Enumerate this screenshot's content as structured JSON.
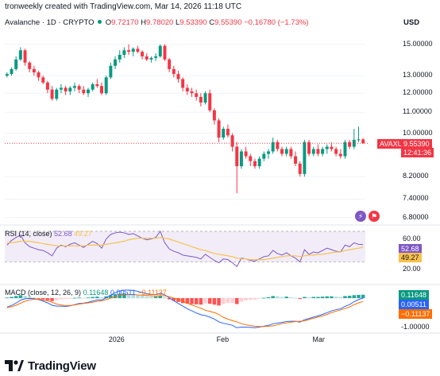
{
  "credit": "tronweekly created with TradingView.com, Mar 14, 2026 11:18 UTC",
  "legend": {
    "symbol": "Avalanche · 1D · CRYPTO",
    "o_key": "O",
    "o": "9.72170",
    "h_key": "H",
    "h": "9.78020",
    "l_key": "L",
    "l": "9.53390",
    "c_key": "C",
    "c": "9.55390",
    "change": "−0.16780 (−1.73%)"
  },
  "currency": "USD",
  "price_tag": {
    "symbol": "AVAXUSD",
    "price": "9.55390",
    "countdown": "12:41:36"
  },
  "rsi_legend": {
    "label": "RSI (14, close)",
    "rsi": "52.68",
    "ma": "49.27"
  },
  "rsi_tags": {
    "rsi": "52.68",
    "ma": "49.27"
  },
  "macd_legend": {
    "label": "MACD (close, 12, 26, 9)",
    "hist": "0.11648",
    "macd": "0.00511",
    "signal": "−0.11137"
  },
  "macd_tags": {
    "hist": "0.11648",
    "macd": "0.00511",
    "signal": "−0.11137"
  },
  "brand": "TradingView",
  "colors": {
    "up": "#089981",
    "down": "#f23645",
    "rsi": "#7e57c2",
    "rsi_ma": "#f7c14d",
    "macd": "#2962ff",
    "signal": "#ff6d00"
  },
  "chart_data": [
    {
      "type": "candlestick",
      "title": "Avalanche · 1D · CRYPTO",
      "ylabel": "USD",
      "y_ticks": [
        "15.00000",
        "13.00000",
        "12.00000",
        "11.00000",
        "10.00000",
        "8.20000",
        "7.40000",
        "6.80000"
      ],
      "x_ticks": [
        "2026",
        "Feb",
        "Mar"
      ],
      "log_scale": true,
      "ylim": [
        6.6,
        16.0
      ],
      "x_range": [
        "2025-11-30",
        "2026-03-14"
      ],
      "candles": [
        [
          13.0,
          13.2,
          12.9,
          13.1
        ],
        [
          13.1,
          13.5,
          13.0,
          13.4
        ],
        [
          13.4,
          14.2,
          13.3,
          14.0
        ],
        [
          14.0,
          14.8,
          13.9,
          14.6
        ],
        [
          14.6,
          14.7,
          13.6,
          13.8
        ],
        [
          13.8,
          13.9,
          13.2,
          13.4
        ],
        [
          13.4,
          13.6,
          13.0,
          13.2
        ],
        [
          13.2,
          13.3,
          12.7,
          12.9
        ],
        [
          12.9,
          13.0,
          12.5,
          12.6
        ],
        [
          12.6,
          12.7,
          12.0,
          12.2
        ],
        [
          12.2,
          12.4,
          11.6,
          11.7
        ],
        [
          11.7,
          12.3,
          11.6,
          12.2
        ],
        [
          12.2,
          12.5,
          12.0,
          12.3
        ],
        [
          12.3,
          12.4,
          11.9,
          12.1
        ],
        [
          12.1,
          12.4,
          11.9,
          12.3
        ],
        [
          12.3,
          12.6,
          12.1,
          12.4
        ],
        [
          12.4,
          12.5,
          12.0,
          12.2
        ],
        [
          12.2,
          12.4,
          11.9,
          12.0
        ],
        [
          12.0,
          12.3,
          11.8,
          12.2
        ],
        [
          12.2,
          12.6,
          12.1,
          12.5
        ],
        [
          12.5,
          12.8,
          12.3,
          12.4
        ],
        [
          12.4,
          12.6,
          11.9,
          12.0
        ],
        [
          12.0,
          13.0,
          11.9,
          12.9
        ],
        [
          12.9,
          13.8,
          12.8,
          13.6
        ],
        [
          13.6,
          14.2,
          13.4,
          14.0
        ],
        [
          14.0,
          14.6,
          13.8,
          14.3
        ],
        [
          14.3,
          14.8,
          14.1,
          14.6
        ],
        [
          14.6,
          15.0,
          14.3,
          14.5
        ],
        [
          14.5,
          14.8,
          14.2,
          14.7
        ],
        [
          14.7,
          14.9,
          14.4,
          14.5
        ],
        [
          14.5,
          14.6,
          14.0,
          14.2
        ],
        [
          14.2,
          14.4,
          13.9,
          14.0
        ],
        [
          14.0,
          14.2,
          13.8,
          14.1
        ],
        [
          14.1,
          14.4,
          13.9,
          14.2
        ],
        [
          14.2,
          15.0,
          14.1,
          14.9
        ],
        [
          14.9,
          15.0,
          13.9,
          14.0
        ],
        [
          14.0,
          14.1,
          13.2,
          13.4
        ],
        [
          13.4,
          13.6,
          12.9,
          13.1
        ],
        [
          13.1,
          13.3,
          12.6,
          12.8
        ],
        [
          12.8,
          12.9,
          12.1,
          12.3
        ],
        [
          12.3,
          12.5,
          11.9,
          12.1
        ],
        [
          12.1,
          12.3,
          11.8,
          12.0
        ],
        [
          12.0,
          12.2,
          11.6,
          11.8
        ],
        [
          11.8,
          12.0,
          11.3,
          11.5
        ],
        [
          11.5,
          12.1,
          11.4,
          12.0
        ],
        [
          12.0,
          12.2,
          11.0,
          11.1
        ],
        [
          11.1,
          11.2,
          10.4,
          10.6
        ],
        [
          10.6,
          10.7,
          9.6,
          9.8
        ],
        [
          9.8,
          10.3,
          9.7,
          10.2
        ],
        [
          10.2,
          10.4,
          9.8,
          9.9
        ],
        [
          9.9,
          10.0,
          9.2,
          9.4
        ],
        [
          9.4,
          9.6,
          7.6,
          8.6
        ],
        [
          8.6,
          9.3,
          8.5,
          9.2
        ],
        [
          9.2,
          9.4,
          8.9,
          9.0
        ],
        [
          9.0,
          9.1,
          8.6,
          8.8
        ],
        [
          8.8,
          8.9,
          8.5,
          8.6
        ],
        [
          8.6,
          9.0,
          8.5,
          8.9
        ],
        [
          8.9,
          9.2,
          8.8,
          9.1
        ],
        [
          9.1,
          9.3,
          8.9,
          9.2
        ],
        [
          9.2,
          9.8,
          9.1,
          9.6
        ],
        [
          9.6,
          9.7,
          9.2,
          9.3
        ],
        [
          9.3,
          9.4,
          9.0,
          9.1
        ],
        [
          9.1,
          9.4,
          9.0,
          9.3
        ],
        [
          9.3,
          9.4,
          8.9,
          9.0
        ],
        [
          9.0,
          9.2,
          8.6,
          8.7
        ],
        [
          8.7,
          8.8,
          8.2,
          8.3
        ],
        [
          8.3,
          9.7,
          8.2,
          9.6
        ],
        [
          9.6,
          9.7,
          9.0,
          9.1
        ],
        [
          9.1,
          9.4,
          9.0,
          9.3
        ],
        [
          9.3,
          9.5,
          9.0,
          9.1
        ],
        [
          9.1,
          9.4,
          9.0,
          9.3
        ],
        [
          9.3,
          9.5,
          9.1,
          9.4
        ],
        [
          9.4,
          9.6,
          9.2,
          9.3
        ],
        [
          9.3,
          9.4,
          9.0,
          9.1
        ],
        [
          9.1,
          9.3,
          8.9,
          9.0
        ],
        [
          9.0,
          9.7,
          8.9,
          9.6
        ],
        [
          9.6,
          9.7,
          9.3,
          9.4
        ],
        [
          9.4,
          10.2,
          9.3,
          9.7
        ],
        [
          9.7,
          10.3,
          9.6,
          9.72
        ],
        [
          9.72,
          9.78,
          9.53,
          9.55
        ]
      ]
    },
    {
      "type": "line",
      "title": "RSI (14, close)",
      "y_ticks": [
        "60.00",
        "20.00"
      ],
      "ylim": [
        15,
        70
      ],
      "bands": [
        30,
        70
      ],
      "series": [
        {
          "name": "RSI",
          "values": [
            52,
            58,
            62,
            65,
            55,
            50,
            48,
            46,
            45,
            42,
            38,
            48,
            52,
            50,
            53,
            55,
            52,
            49,
            53,
            57,
            54,
            48,
            60,
            66,
            68,
            69,
            68,
            66,
            67,
            64,
            61,
            59,
            60,
            62,
            70,
            55,
            47,
            44,
            42,
            39,
            38,
            37,
            36,
            34,
            40,
            36,
            32,
            29,
            34,
            33,
            29,
            24,
            35,
            34,
            32,
            31,
            34,
            37,
            38,
            45,
            41,
            39,
            42,
            38,
            35,
            30,
            46,
            40,
            43,
            42,
            45,
            48,
            46,
            44,
            43,
            52,
            50,
            55,
            53,
            52.68
          ]
        },
        {
          "name": "MA",
          "values": [
            55,
            55,
            56,
            57,
            57,
            57,
            56,
            55,
            54,
            53,
            52,
            51,
            51,
            51,
            51,
            51,
            51,
            51,
            52,
            52,
            52,
            52,
            53,
            54,
            55,
            56,
            57,
            59,
            60,
            61,
            61,
            61,
            61,
            61,
            62,
            61,
            60,
            58,
            56,
            54,
            52,
            50,
            48,
            46,
            45,
            43,
            41,
            40,
            39,
            38,
            37,
            35,
            34,
            34,
            33,
            33,
            33,
            33,
            34,
            35,
            36,
            37,
            38,
            38,
            38,
            37,
            38,
            39,
            39,
            40,
            40,
            41,
            42,
            43,
            43,
            45,
            46,
            47,
            48,
            49.27
          ]
        }
      ]
    },
    {
      "type": "bar",
      "title": "MACD (close, 12, 26, 9)",
      "y_ticks": [
        "-1.00000"
      ],
      "ylim": [
        -1.1,
        0.35
      ],
      "zero_line": true,
      "histogram": [
        0.02,
        0.04,
        0.07,
        0.1,
        0.08,
        0.05,
        0.02,
        -0.01,
        -0.04,
        -0.07,
        -0.1,
        -0.07,
        -0.04,
        -0.03,
        -0.01,
        0.01,
        0.02,
        0.01,
        0.02,
        0.04,
        0.05,
        0.03,
        0.06,
        0.1,
        0.13,
        0.15,
        0.16,
        0.15,
        0.14,
        0.12,
        0.09,
        0.06,
        0.05,
        0.05,
        0.08,
        0.03,
        -0.04,
        -0.09,
        -0.13,
        -0.17,
        -0.19,
        -0.2,
        -0.21,
        -0.22,
        -0.18,
        -0.19,
        -0.22,
        -0.25,
        -0.2,
        -0.17,
        -0.16,
        -0.2,
        -0.12,
        -0.08,
        -0.06,
        -0.05,
        -0.02,
        0.01,
        0.03,
        0.07,
        0.06,
        0.04,
        0.05,
        0.03,
        0.01,
        -0.03,
        0.04,
        0.03,
        0.04,
        0.04,
        0.05,
        0.06,
        0.06,
        0.05,
        0.04,
        0.07,
        0.08,
        0.1,
        0.11,
        0.11648
      ],
      "series": [
        {
          "name": "MACD",
          "values": [
            -0.3,
            -0.25,
            -0.17,
            -0.07,
            -0.02,
            -0.01,
            -0.02,
            -0.05,
            -0.1,
            -0.16,
            -0.24,
            -0.27,
            -0.27,
            -0.28,
            -0.26,
            -0.22,
            -0.18,
            -0.17,
            -0.14,
            -0.1,
            -0.06,
            -0.06,
            0.01,
            0.1,
            0.18,
            0.24,
            0.27,
            0.27,
            0.26,
            0.23,
            0.19,
            0.15,
            0.13,
            0.12,
            0.16,
            0.11,
            0.01,
            -0.09,
            -0.18,
            -0.27,
            -0.36,
            -0.43,
            -0.5,
            -0.56,
            -0.59,
            -0.64,
            -0.71,
            -0.8,
            -0.85,
            -0.88,
            -0.92,
            -1.0,
            -0.98,
            -0.98,
            -0.99,
            -1.0,
            -0.98,
            -0.95,
            -0.92,
            -0.87,
            -0.84,
            -0.82,
            -0.79,
            -0.78,
            -0.78,
            -0.81,
            -0.73,
            -0.69,
            -0.64,
            -0.6,
            -0.55,
            -0.49,
            -0.43,
            -0.39,
            -0.36,
            -0.28,
            -0.22,
            -0.12,
            -0.05,
            0.00511
          ]
        },
        {
          "name": "Signal",
          "values": [
            -0.32,
            -0.29,
            -0.24,
            -0.17,
            -0.1,
            -0.06,
            -0.04,
            -0.04,
            -0.06,
            -0.09,
            -0.14,
            -0.2,
            -0.23,
            -0.25,
            -0.25,
            -0.23,
            -0.2,
            -0.18,
            -0.16,
            -0.14,
            -0.11,
            -0.09,
            -0.05,
            0.0,
            0.05,
            0.09,
            0.11,
            0.12,
            0.12,
            0.11,
            0.1,
            0.09,
            0.08,
            0.07,
            0.08,
            0.08,
            0.05,
            0.0,
            -0.05,
            -0.1,
            -0.17,
            -0.23,
            -0.29,
            -0.34,
            -0.41,
            -0.45,
            -0.49,
            -0.55,
            -0.65,
            -0.71,
            -0.76,
            -0.8,
            -0.86,
            -0.9,
            -0.93,
            -0.95,
            -0.96,
            -0.96,
            -0.95,
            -0.94,
            -0.9,
            -0.86,
            -0.84,
            -0.81,
            -0.79,
            -0.78,
            -0.77,
            -0.72,
            -0.68,
            -0.64,
            -0.6,
            -0.55,
            -0.49,
            -0.44,
            -0.4,
            -0.35,
            -0.3,
            -0.22,
            -0.16,
            -0.11137
          ]
        }
      ]
    }
  ]
}
